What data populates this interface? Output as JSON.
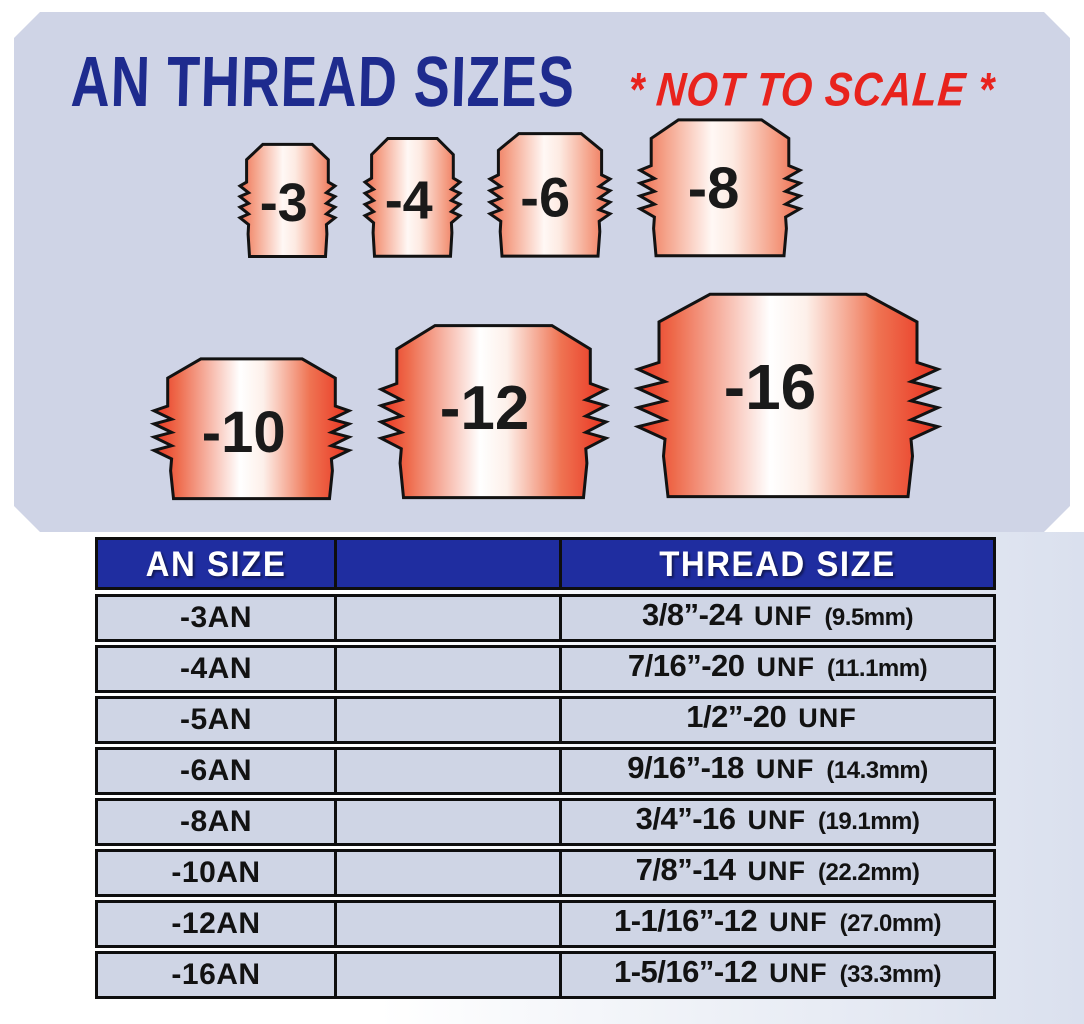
{
  "header": {
    "title": "AN THREAD SIZES",
    "warning": "* NOT TO SCALE *"
  },
  "fittings": [
    {
      "label": "-3"
    },
    {
      "label": "-4"
    },
    {
      "label": "-6"
    },
    {
      "label": "-8"
    },
    {
      "label": "-10"
    },
    {
      "label": "-12"
    },
    {
      "label": "-16"
    }
  ],
  "table": {
    "columns": {
      "an": "AN SIZE",
      "middle": "",
      "thread": "THREAD SIZE"
    },
    "rows": [
      {
        "an": "-3AN",
        "thread": "3/8”-24",
        "unit": "UNF",
        "mm": "(9.5mm)"
      },
      {
        "an": "-4AN",
        "thread": "7/16”-20",
        "unit": "UNF",
        "mm": "(11.1mm)"
      },
      {
        "an": "-5AN",
        "thread": "1/2”-20",
        "unit": "UNF",
        "mm": ""
      },
      {
        "an": "-6AN",
        "thread": "9/16”-18",
        "unit": "UNF",
        "mm": "(14.3mm)"
      },
      {
        "an": "-8AN",
        "thread": "3/4”-16",
        "unit": "UNF",
        "mm": "(19.1mm)"
      },
      {
        "an": "-10AN",
        "thread": "7/8”-14",
        "unit": "UNF",
        "mm": "(22.2mm)"
      },
      {
        "an": "-12AN",
        "thread": "1-1/16”-12",
        "unit": "UNF",
        "mm": "(27.0mm)"
      },
      {
        "an": "-16AN",
        "thread": "1-5/16”-12",
        "unit": "UNF",
        "mm": "(33.3mm)"
      }
    ]
  },
  "colors": {
    "panel_bg": "#cfd4e6",
    "title_blue": "#1e2b8e",
    "warning_red": "#e8231d",
    "table_header_blue": "#1f2da0",
    "row_bg": "#cfd5e5",
    "fitting_red_small": "#ed6f52",
    "fitting_red_large": "#e93320",
    "border_black": "#0e0e0e"
  }
}
